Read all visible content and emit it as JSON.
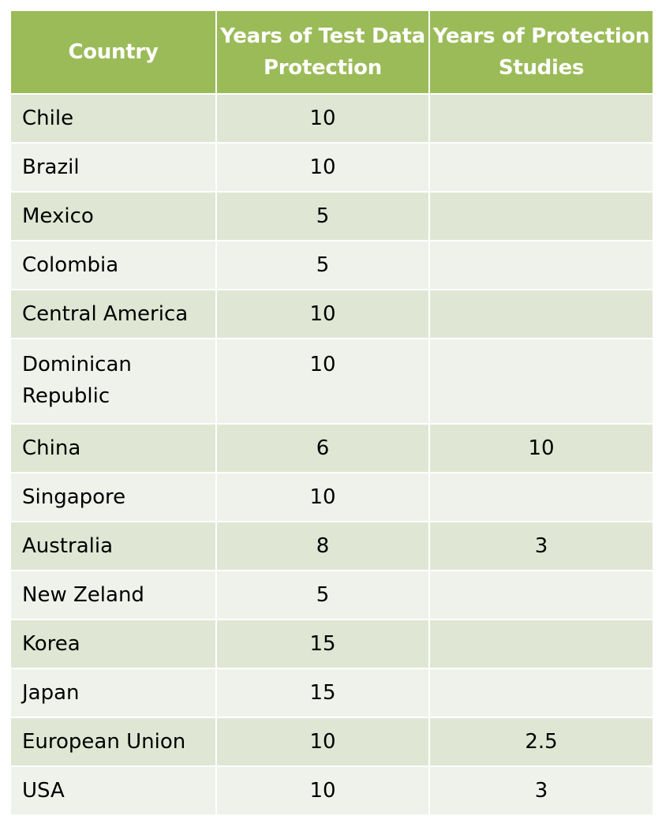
{
  "table": {
    "headers": [
      "Country",
      "Years of Test Data Protection",
      "Years of Protection Studies"
    ],
    "rows": [
      {
        "country": "Chile",
        "test_data": "10",
        "studies": ""
      },
      {
        "country": "Brazil",
        "test_data": "10",
        "studies": ""
      },
      {
        "country": "Mexico",
        "test_data": "5",
        "studies": ""
      },
      {
        "country": "Colombia",
        "test_data": "5",
        "studies": ""
      },
      {
        "country": "Central America",
        "test_data": "10",
        "studies": ""
      },
      {
        "country": "Dominican Republic",
        "test_data": "10",
        "studies": ""
      },
      {
        "country": "China",
        "test_data": "6",
        "studies": "10"
      },
      {
        "country": "Singapore",
        "test_data": "10",
        "studies": ""
      },
      {
        "country": "Australia",
        "test_data": "8",
        "studies": "3"
      },
      {
        "country": "New Zeland",
        "test_data": "5",
        "studies": ""
      },
      {
        "country": "Korea",
        "test_data": "15",
        "studies": ""
      },
      {
        "country": "Japan",
        "test_data": "15",
        "studies": ""
      },
      {
        "country": "European Union",
        "test_data": "10",
        "studies": "2.5"
      },
      {
        "country": "USA",
        "test_data": "10",
        "studies": "3"
      }
    ]
  },
  "colors": {
    "header_bg": "#9bbb59",
    "row_odd_bg": "#dfe7d4",
    "row_even_bg": "#eff2ea"
  }
}
